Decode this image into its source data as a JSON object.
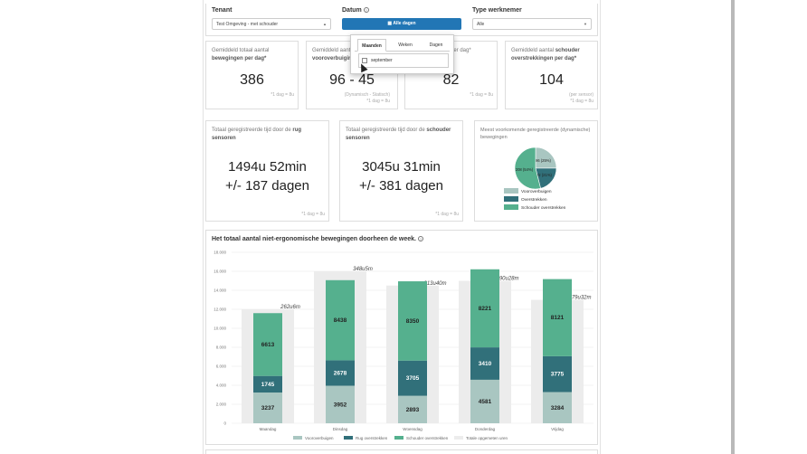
{
  "filters": {
    "tenant_label": "Tenant",
    "tenant_value": "Test Omgeving - met schouder",
    "date_label": "Datum",
    "date_button": "Alle dagen",
    "worker_label": "Type werknemer",
    "worker_value": "Alle"
  },
  "dropdown": {
    "tabs": [
      "Maanden",
      "Weken",
      "Dagen"
    ],
    "option": "september"
  },
  "cards": [
    {
      "title_pre": "Gemiddeld totaal aantal",
      "title_post": "bewegingen per dag*",
      "value": "386",
      "note": "*1 dag = 8u"
    },
    {
      "title_pre": "Gemiddeld aant",
      "title_post": "vooroverbuigin",
      "value": "96 - 45",
      "note1": "(Dynamisch - Statisch)",
      "note": "*1 dag = 8u"
    },
    {
      "title_post": "per dag*",
      "value": "82",
      "note": "*1 dag = 8u"
    },
    {
      "title_pre": "Gemiddeld aantal ",
      "title_bold": "schouder",
      "title_post": "overstrekkingen per dag*",
      "value": "104",
      "note1": "(per sensor)",
      "note": "*1 dag = 8u"
    }
  ],
  "timecards": [
    {
      "title_pre": "Totaal geregistreerde tijd door de ",
      "title_bold": "rug",
      "title_post": " sensoren",
      "line1": "1494u 52min",
      "line2": "+/- 187 dagen",
      "note": "*1 dag = 8u"
    },
    {
      "title_pre": "Totaal geregistreerde tijd door de ",
      "title_bold": "schouder",
      "title_post": " sensoren",
      "line1": "3045u 31min",
      "line2": "+/- 381 dagen",
      "note": "*1 dag = 8u"
    }
  ],
  "pie": {
    "title": "Meest voorkomende geregistreerde (dynamische) bewegingen",
    "slices": [
      {
        "label": "Vooroverbuigen",
        "value": 96,
        "text": "96 (25%)",
        "color": "#a9c6c1"
      },
      {
        "label": "Overstrekken",
        "value": 82,
        "text": "82 (21%)",
        "color": "#31707a"
      },
      {
        "label": "Schouder overstrekken",
        "value": 208,
        "text": "208 (54%)",
        "color": "#55b08e"
      }
    ]
  },
  "chart": {
    "title": "Het totaal aantal niet-ergonomische bewegingen doorheen de week.",
    "yticks": [
      "18.000",
      "16.000",
      "14.000",
      "12.000",
      "10.000",
      "8.000",
      "6.000",
      "4.000",
      "2.000",
      "0"
    ],
    "legend": [
      "Vooroverbuigen",
      "Rug overstrekken",
      "Schouder overstrekken",
      "Totale opgemeten uren"
    ]
  },
  "chart_data": {
    "type": "bar",
    "categories": [
      "Maandag",
      "Dinsdag",
      "Woensdag",
      "Donderdag",
      "Vrijdag"
    ],
    "series": [
      {
        "name": "Vooroverbuigen",
        "values": [
          3237,
          3952,
          2893,
          4581,
          3284
        ]
      },
      {
        "name": "Rug overstrekken",
        "values": [
          1745,
          2678,
          3705,
          3410,
          3775
        ]
      },
      {
        "name": "Schouder overstrekken",
        "values": [
          6613,
          8438,
          8350,
          8221,
          8121
        ]
      },
      {
        "name": "Totale opgemeten uren",
        "values": [
          12000,
          16000,
          14500,
          15000,
          13000
        ],
        "labels": [
          "262u6m",
          "348u5m",
          "313u40m",
          "290u28m",
          "279u32m"
        ]
      }
    ],
    "ylim": [
      0,
      18000
    ],
    "colors": {
      "Vooroverbuigen": "#a9c6c1",
      "Rug overstrekken": "#31707a",
      "Schouder overstrekken": "#55b08e",
      "Totale opgemeten uren": "#ececec"
    }
  }
}
